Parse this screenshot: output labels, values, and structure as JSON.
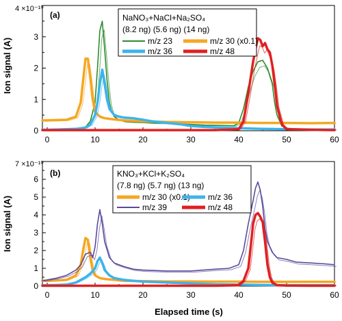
{
  "chart_data": [
    {
      "type": "line",
      "panel_label": "(a)",
      "ylabel": "Ion signal (A)",
      "y_exponent_label": "4 ×10⁻¹⁰",
      "xlim": [
        -1,
        60
      ],
      "ylim": [
        0,
        4
      ],
      "y_tick_labels": [
        "0",
        "1",
        "2",
        "3"
      ],
      "x_tick_labels": [
        "0",
        "10",
        "20",
        "30",
        "40",
        "50",
        "60"
      ],
      "legend_title": "NaNO₃+NaCl+Na₂SO₄",
      "legend_amounts": "(8.2 ng) (5.6 ng) (14 ng)",
      "colors": {
        "green": "#2e8b2e",
        "orange": "#f5a623",
        "blue": "#3db3ea",
        "red": "#e02020"
      },
      "series": [
        {
          "name": "m/z 23",
          "color": "green",
          "x": [
            -1,
            0,
            2,
            4,
            6,
            8,
            9,
            10,
            10.5,
            11,
            11.5,
            12,
            12.5,
            13,
            13.5,
            14,
            15,
            16,
            18,
            20,
            22,
            25,
            28,
            30,
            33,
            36,
            39,
            40,
            41,
            42,
            43,
            44,
            45,
            46,
            47,
            47.5,
            48,
            49,
            50,
            52,
            55,
            58,
            60
          ],
          "y": [
            0.02,
            0.02,
            0.03,
            0.03,
            0.05,
            0.12,
            0.3,
            0.9,
            2.0,
            3.2,
            3.5,
            2.6,
            1.6,
            0.9,
            0.6,
            0.45,
            0.35,
            0.3,
            0.28,
            0.27,
            0.25,
            0.24,
            0.22,
            0.2,
            0.18,
            0.17,
            0.16,
            0.25,
            0.7,
            1.4,
            1.9,
            2.2,
            2.25,
            2.0,
            1.5,
            0.9,
            0.5,
            0.15,
            0.08,
            0.06,
            0.05,
            0.05,
            0.04
          ]
        },
        {
          "name": "m/z 30 (x0.1)",
          "color": "orange",
          "x": [
            -1,
            0,
            2,
            4,
            6,
            7,
            7.5,
            8,
            8.5,
            9,
            9.5,
            10,
            11,
            12,
            14,
            16,
            20,
            25,
            30,
            35,
            40,
            45,
            50,
            55,
            60
          ],
          "y": [
            0.33,
            0.33,
            0.34,
            0.35,
            0.45,
            0.9,
            1.6,
            2.3,
            2.3,
            1.7,
            1.0,
            0.6,
            0.45,
            0.4,
            0.36,
            0.33,
            0.3,
            0.28,
            0.27,
            0.26,
            0.26,
            0.25,
            0.25,
            0.24,
            0.25
          ]
        },
        {
          "name": "m/z 36",
          "color": "blue",
          "x": [
            -1,
            0,
            2,
            4,
            6,
            8,
            9,
            10,
            10.5,
            11,
            11.5,
            12,
            12.5,
            13,
            14,
            15,
            16,
            18,
            20,
            22,
            25,
            28,
            30,
            33,
            36,
            40,
            45,
            50,
            55,
            60
          ],
          "y": [
            0.03,
            0.03,
            0.04,
            0.05,
            0.06,
            0.1,
            0.2,
            0.5,
            0.9,
            1.5,
            1.95,
            1.5,
            1.0,
            0.7,
            0.5,
            0.45,
            0.42,
            0.4,
            0.35,
            0.3,
            0.25,
            0.2,
            0.15,
            0.12,
            0.1,
            0.08,
            0.06,
            0.05,
            0.04,
            0.04
          ]
        },
        {
          "name": "m/z 48",
          "color": "red",
          "x": [
            -1,
            0,
            5,
            10,
            15,
            20,
            25,
            30,
            35,
            40,
            41,
            42,
            43,
            43.5,
            44,
            44.5,
            45,
            45.5,
            46,
            46.5,
            47,
            47.5,
            48,
            49,
            50,
            55,
            60
          ],
          "y": [
            0.02,
            0.02,
            0.02,
            0.02,
            0.02,
            0.02,
            0.02,
            0.02,
            0.02,
            0.05,
            0.3,
            1.2,
            2.2,
            2.6,
            2.95,
            2.9,
            2.7,
            2.8,
            2.6,
            2.5,
            2.1,
            1.5,
            0.8,
            0.2,
            0.05,
            0.03,
            0.02
          ]
        }
      ]
    },
    {
      "type": "line",
      "panel_label": "(b)",
      "ylabel": "Ion signal (A)",
      "xlabel": "Elapsed time (s)",
      "y_exponent_label": "7 ×10⁻¹⁰",
      "xlim": [
        -1,
        60
      ],
      "ylim": [
        0,
        7
      ],
      "y_tick_labels": [
        "0",
        "1",
        "2",
        "3",
        "4",
        "5",
        "6"
      ],
      "x_tick_labels": [
        "0",
        "10",
        "20",
        "30",
        "40",
        "50",
        "60"
      ],
      "legend_title": "KNO₃+KCl+K₂SO₄",
      "legend_amounts": "(7.8 ng) (5.7 ng) (13 ng)",
      "colors": {
        "orange": "#f5a623",
        "blue": "#3db3ea",
        "purple": "#5b4a9b",
        "red": "#e02020"
      },
      "series": [
        {
          "name": "m/z 30 (x0.1)",
          "color": "orange",
          "x": [
            -1,
            0,
            2,
            4,
            6,
            7,
            7.5,
            8,
            8.5,
            9,
            9.5,
            10,
            11,
            12,
            14,
            16,
            20,
            25,
            30,
            35,
            40,
            45,
            50,
            55,
            60
          ],
          "y": [
            0.3,
            0.3,
            0.32,
            0.35,
            0.6,
            1.2,
            2.0,
            2.7,
            2.6,
            1.6,
            0.9,
            0.6,
            0.45,
            0.4,
            0.35,
            0.3,
            0.28,
            0.26,
            0.26,
            0.25,
            0.25,
            0.24,
            0.24,
            0.24,
            0.24
          ]
        },
        {
          "name": "m/z 36",
          "color": "blue",
          "x": [
            -1,
            0,
            2,
            4,
            6,
            8,
            9,
            10,
            10.5,
            11,
            11.5,
            12,
            13,
            14,
            16,
            18,
            20,
            25,
            30,
            35,
            40,
            45,
            50,
            55,
            60
          ],
          "y": [
            0.05,
            0.05,
            0.06,
            0.08,
            0.2,
            0.5,
            0.7,
            1.0,
            1.4,
            1.6,
            1.3,
            0.9,
            0.6,
            0.45,
            0.35,
            0.3,
            0.25,
            0.2,
            0.15,
            0.1,
            0.08,
            0.06,
            0.05,
            0.05,
            0.05
          ]
        },
        {
          "name": "m/z 39",
          "color": "purple",
          "x": [
            -1,
            0,
            2,
            4,
            6,
            7,
            8,
            9,
            9.5,
            10,
            10.5,
            11,
            11.5,
            12,
            13,
            14,
            16,
            18,
            20,
            25,
            30,
            35,
            38,
            40,
            41,
            42,
            43,
            43.5,
            44,
            44.5,
            45,
            45.5,
            46,
            47,
            48,
            50,
            52,
            55,
            58,
            60
          ],
          "y": [
            0.3,
            0.35,
            0.45,
            0.6,
            0.9,
            1.2,
            1.8,
            1.9,
            1.6,
            2.2,
            3.5,
            4.3,
            3.5,
            2.5,
            1.6,
            1.3,
            1.1,
            0.95,
            0.9,
            0.85,
            0.85,
            0.95,
            1.0,
            1.2,
            2.0,
            3.5,
            4.8,
            5.5,
            5.85,
            5.4,
            4.5,
            3.2,
            2.5,
            1.9,
            1.6,
            1.5,
            1.35,
            1.3,
            1.25,
            1.2
          ]
        },
        {
          "name": "m/z 48",
          "color": "red",
          "x": [
            -1,
            0,
            5,
            10,
            15,
            20,
            25,
            30,
            35,
            40,
            41,
            42,
            42.5,
            43,
            43.5,
            44,
            44.5,
            45,
            45.5,
            46,
            46.5,
            47,
            48,
            50,
            55,
            60
          ],
          "y": [
            0.02,
            0.02,
            0.02,
            0.02,
            0.02,
            0.02,
            0.02,
            0.02,
            0.02,
            0.05,
            0.3,
            1.0,
            2.2,
            3.5,
            4.0,
            4.1,
            3.9,
            3.6,
            2.5,
            1.2,
            0.5,
            0.2,
            0.05,
            0.03,
            0.02,
            0.02
          ]
        }
      ]
    }
  ]
}
